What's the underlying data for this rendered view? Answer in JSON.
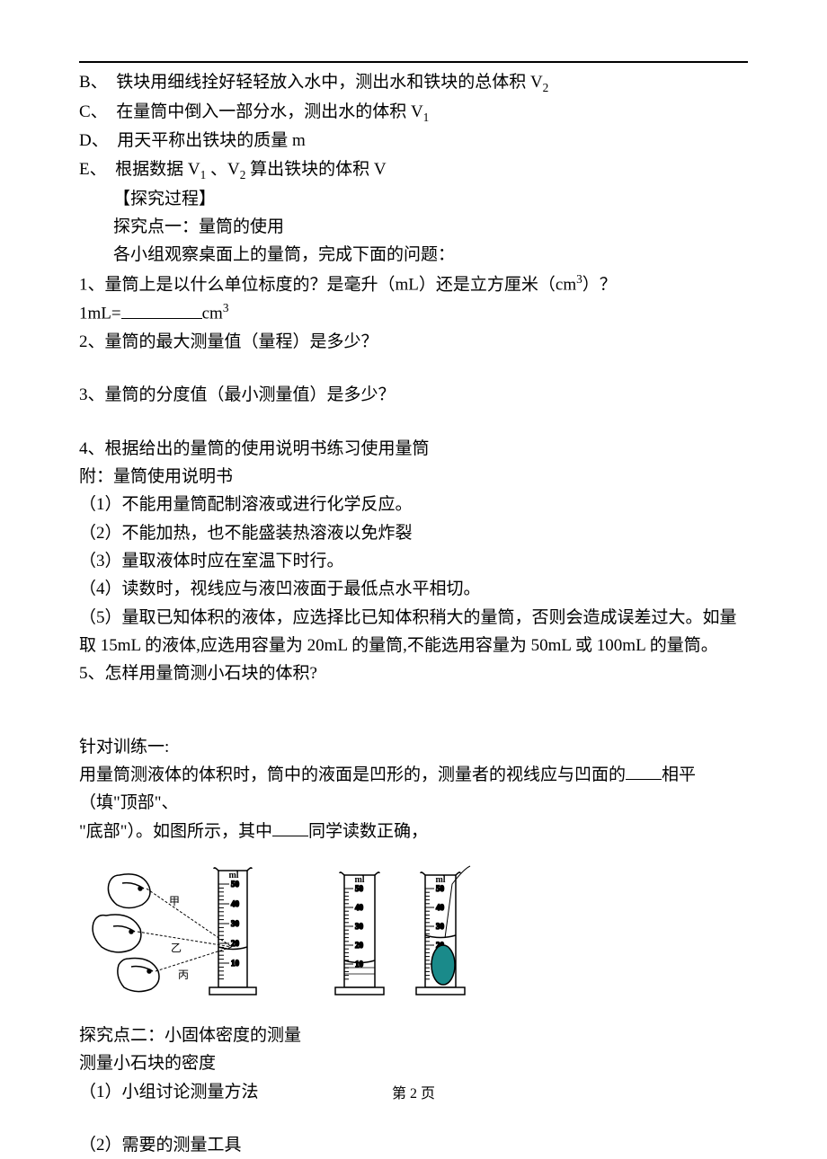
{
  "items": {
    "B": "铁块用细线拴好轻轻放入水中，测出水和铁块的总体积 V",
    "B_sub": "2",
    "C": "在量筒中倒入一部分水，测出水的体积 V",
    "C_sub": "1",
    "D": "用天平称出铁块的质量 m",
    "E": "根据数据 V",
    "E_sub1": "1",
    "E_mid": " 、V",
    "E_sub2": "2",
    "E_end": " 算出铁块的体积 V"
  },
  "process_title": "【探究过程】",
  "point1_title": "探究点一：量筒的使用",
  "point1_intro": "各小组观察桌面上的量筒，完成下面的问题：",
  "q1": "1、量筒上是以什么单位标度的？是毫升（mL）还是立方厘米（cm",
  "q1_sup": "3",
  "q1_end": "）？",
  "q1_unit_left": "1mL=",
  "q1_unit_right": "cm",
  "q1_unit_sup": "3",
  "q2": "2、量筒的最大测量值（量程）是多少？",
  "q3": "3、量筒的分度值（最小测量值）是多少？",
  "q4": "4、根据给出的量筒的使用说明书练习使用量筒",
  "manual_title": "附：量筒使用说明书",
  "manual1": "（1）不能用量筒配制溶液或进行化学反应。",
  "manual2": "（2）不能加热，也不能盛装热溶液以免炸裂",
  "manual3": "（3）量取液体时应在室温下时行。",
  "manual4": "（4）读数时，视线应与液凹液面于最低点水平相切。",
  "manual5": "（5）量取已知体积的液体，应选择比已知体积稍大的量筒，否则会造成误差过大。如量取 15mL 的液体,应选用容量为 20mL 的量筒,不能选用容量为 50mL 或 100mL 的量筒。",
  "q5": "5、怎样用量筒测小石块的体积?",
  "practice_title": "针对训练一:",
  "practice_line1a": "用量筒测液体的体积时，筒中的液面是凹形的，测量者的视线应与凹面的",
  "practice_line1b": "相平（填\"顶部\"、",
  "practice_line2a": "\"底部\"）。如图所示，其中",
  "practice_line2b": "同学读数正确，",
  "point2_title": "探究点二：小固体密度的测量",
  "point2_sub": "测量小石块的密度",
  "point2_1": "（1）小组讨论测量方法",
  "point2_2": "（2）需要的测量工具",
  "footer": "第 2 页",
  "diagram1": {
    "ticks": [
      10,
      20,
      30,
      40,
      50
    ],
    "persons": [
      "甲",
      "乙",
      "丙"
    ],
    "liquid_level": 20,
    "label": "ml",
    "cylinder_fill": "#ffffff",
    "stroke": "#000000"
  },
  "diagram2": {
    "left_ticks": [
      10,
      20,
      30,
      40,
      50
    ],
    "right_ticks": [
      10,
      20,
      30,
      40,
      50
    ],
    "label": "ml",
    "left_level": 15,
    "right_level": 28,
    "stone_color": "#1a8a8a",
    "stroke": "#000000"
  }
}
